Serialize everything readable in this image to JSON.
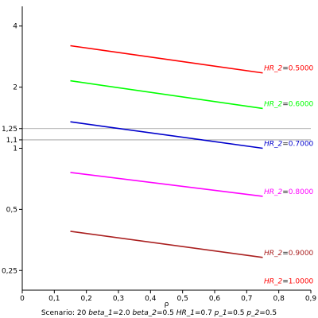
{
  "chart_data": {
    "type": "line",
    "xlabel": "ρ",
    "ylabel": "",
    "xlim": [
      0,
      0.9
    ],
    "ylim": [
      0.2,
      5.0
    ],
    "y_scale": "log",
    "x_ticks": [
      "0",
      "0,1",
      "0,2",
      "0,3",
      "0,4",
      "0,5",
      "0,6",
      "0,7",
      "0,8",
      "0,9"
    ],
    "x_tick_values": [
      0,
      0.1,
      0.2,
      0.3,
      0.4,
      0.5,
      0.6,
      0.7,
      0.8,
      0.9
    ],
    "y_ticks": [
      "0,25",
      "0,5",
      "1",
      "1,1",
      "1,25",
      "2",
      "4"
    ],
    "y_tick_values": [
      0.25,
      0.5,
      1,
      1.1,
      1.25,
      2,
      4
    ],
    "reference_lines": [
      1.1,
      1.25
    ],
    "series": [
      {
        "label_prefix": "HR_2",
        "label_value": "0.5000",
        "color": "#ff0000",
        "x": [
          0.15,
          0.75
        ],
        "y": [
          3.2,
          2.35
        ]
      },
      {
        "label_prefix": "HR_2",
        "label_value": "0.6000",
        "color": "#00ff00",
        "x": [
          0.15,
          0.75
        ],
        "y": [
          2.15,
          1.57
        ]
      },
      {
        "label_prefix": "HR_2",
        "label_value": "0.7000",
        "color": "#0000cc",
        "x": [
          0.15,
          0.75
        ],
        "y": [
          1.35,
          1.0
        ]
      },
      {
        "label_prefix": "HR_2",
        "label_value": "0.8000",
        "color": "#ff00ff",
        "x": [
          0.15,
          0.75
        ],
        "y": [
          0.76,
          0.58
        ]
      },
      {
        "label_prefix": "HR_2",
        "label_value": "0.9000",
        "color": "#aa2020",
        "x": [
          0.15,
          0.75
        ],
        "y": [
          0.39,
          0.29
        ]
      },
      {
        "label_prefix": "HR_2",
        "label_value": "1.0000",
        "color": "#ff0000",
        "x": [],
        "y": [],
        "label_y": 0.21
      }
    ],
    "footer": {
      "scenario_label": "Scenario:",
      "scenario_value": "20",
      "params": [
        {
          "name": "beta_1",
          "value": "2.0"
        },
        {
          "name": "beta_2",
          "value": "0.5"
        },
        {
          "name": "HR_1",
          "value": "0.7"
        },
        {
          "name": "p_1",
          "value": "0.5"
        },
        {
          "name": "p_2",
          "value": "0.5"
        }
      ]
    }
  }
}
